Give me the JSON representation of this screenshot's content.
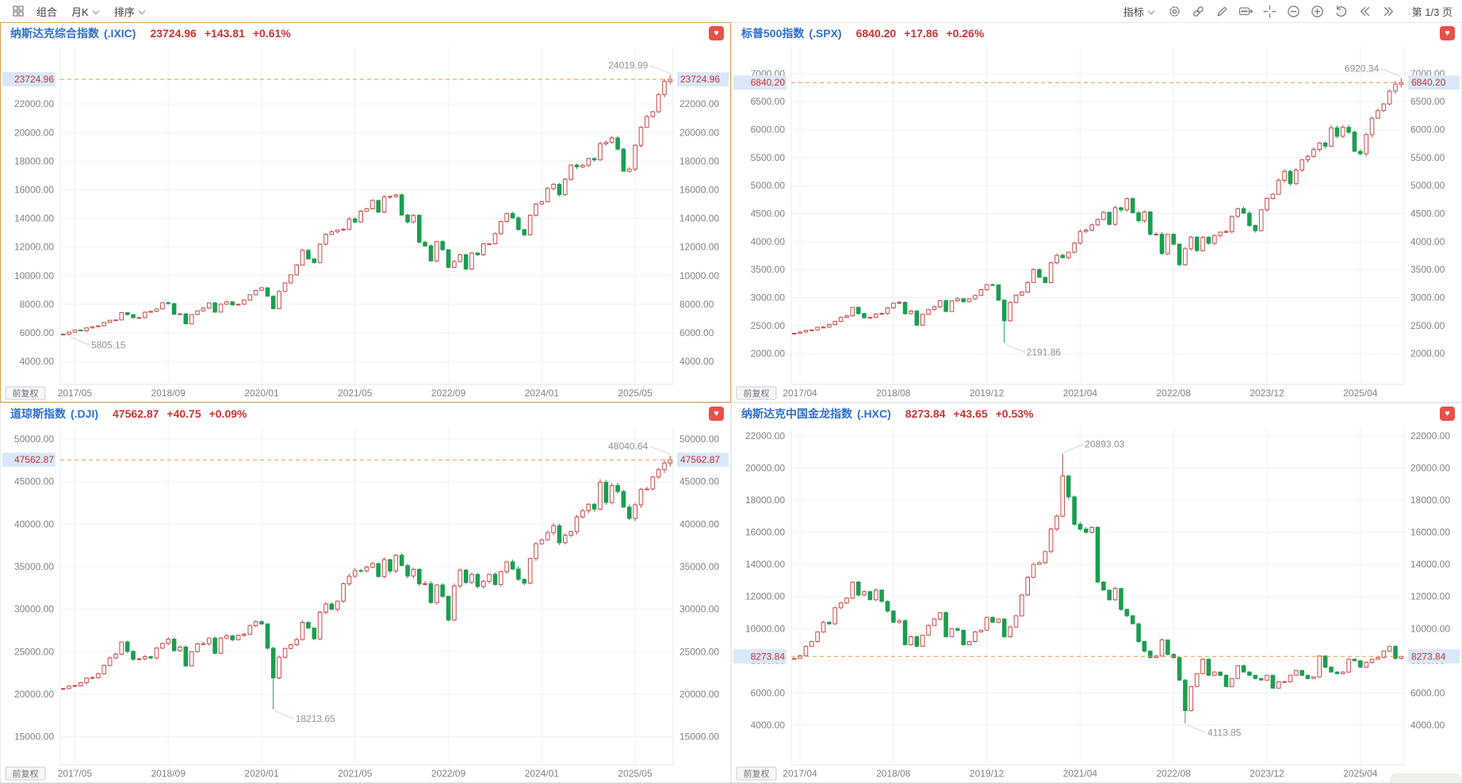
{
  "toolbar": {
    "left": {
      "layout_icon": "grid-layout-icon",
      "portfolio": "组合",
      "period": "月K",
      "sort": "排序"
    },
    "right": {
      "indicator": "指标",
      "page": "第 1/3 页",
      "icon_names": [
        "settings-icon",
        "link-icon",
        "draw-icon",
        "annotation-icon",
        "crosshair-icon",
        "zoom-out-icon",
        "zoom-in-icon",
        "undo-icon",
        "prev-page-icon",
        "next-page-icon"
      ]
    }
  },
  "colors": {
    "up": "#cb4a47",
    "down": "#1b9e51",
    "index_name_blue": "#2e6fce",
    "price_red": "#cc3333",
    "current_line": "#e8973f",
    "current_label_bg": "#d9e8f8",
    "active_panel_border": "#e0a053",
    "grid_line": "#eef0f3",
    "axis_text": "#7d838c",
    "annotation_text": "#8e939b"
  },
  "chart_data": [
    {
      "type": "candlestick",
      "interval": "monthly",
      "active": true,
      "name": "纳斯达克综合指数",
      "code": "(.IXIC)",
      "price": "23724.96",
      "change": "+143.81",
      "pct": "+0.61%",
      "current": 23724.96,
      "adjust_label": "前复权",
      "ylim": [
        2400,
        26000
      ],
      "yticks": [
        4000,
        6000,
        8000,
        10000,
        12000,
        14000,
        16000,
        18000,
        20000,
        22000
      ],
      "xticks": [
        {
          "i": 2,
          "label": "2017/05"
        },
        {
          "i": 18,
          "label": "2018/09"
        },
        {
          "i": 34,
          "label": "2020/01"
        },
        {
          "i": 50,
          "label": "2021/05"
        },
        {
          "i": 66,
          "label": "2022/09"
        },
        {
          "i": 82,
          "label": "2024/01"
        },
        {
          "i": 98,
          "label": "2025/05"
        }
      ],
      "annotations": [
        {
          "i": 104,
          "type": "high",
          "value": 24019.99,
          "label": "24019.99",
          "side": "left"
        },
        {
          "i": 1,
          "type": "low",
          "value": 5805.15,
          "label": "5805.15",
          "side": "right"
        }
      ],
      "closes": [
        5912,
        6048,
        6199,
        6140,
        6348,
        6429,
        6496,
        6728,
        6874,
        6903,
        7411,
        7273,
        7063,
        7066,
        7442,
        7510,
        7672,
        8110,
        8046,
        7306,
        7331,
        6635,
        7282,
        7533,
        7729,
        8095,
        7453,
        8006,
        8175,
        7963,
        7999,
        8292,
        8665,
        8973,
        9151,
        8567,
        7700,
        8890,
        9490,
        10059,
        10745,
        11775,
        11168,
        10912,
        12199,
        12888,
        13071,
        13192,
        13247,
        13963,
        13749,
        14504,
        14673,
        15259,
        14449,
        15498,
        15538,
        15645,
        14240,
        13751,
        14221,
        12335,
        12081,
        11029,
        12391,
        11816,
        10576,
        10988,
        11468,
        10466,
        11585,
        11456,
        12222,
        12227,
        12935,
        13788,
        14346,
        14035,
        13219,
        12851,
        14226,
        15011,
        15164,
        16092,
        16379,
        15658,
        16735,
        17733,
        17599,
        17713,
        18189,
        18095,
        19218,
        19311,
        19627,
        18847,
        17299,
        17446,
        19114,
        20370,
        21122,
        21456,
        22660,
        23581,
        23724.96
      ]
    },
    {
      "type": "candlestick",
      "interval": "monthly",
      "active": false,
      "name": "标普500指数",
      "code": "(.SPX)",
      "price": "6840.20",
      "change": "+17.86",
      "pct": "+0.26%",
      "current": 6840.2,
      "adjust_label": "前复权",
      "ylim": [
        1450,
        7480
      ],
      "yticks": [
        2000,
        2500,
        3000,
        3500,
        4000,
        4500,
        5000,
        5500,
        6000,
        6500,
        7000
      ],
      "xticks": [
        {
          "i": 1,
          "label": "2017/04"
        },
        {
          "i": 17,
          "label": "2018/08"
        },
        {
          "i": 33,
          "label": "2019/12"
        },
        {
          "i": 49,
          "label": "2021/04"
        },
        {
          "i": 65,
          "label": "2022/08"
        },
        {
          "i": 81,
          "label": "2023/12"
        },
        {
          "i": 97,
          "label": "2025/04"
        }
      ],
      "annotations": [
        {
          "i": 104,
          "type": "high",
          "value": 6920.34,
          "label": "6920.34",
          "side": "left"
        },
        {
          "i": 36,
          "type": "low",
          "value": 2191.86,
          "label": "2191.86",
          "side": "right"
        }
      ],
      "closes": [
        2363,
        2384,
        2412,
        2423,
        2470,
        2472,
        2519,
        2575,
        2648,
        2674,
        2824,
        2714,
        2641,
        2648,
        2705,
        2718,
        2816,
        2902,
        2914,
        2712,
        2760,
        2507,
        2704,
        2784,
        2834,
        2946,
        2752,
        2942,
        2980,
        2926,
        2977,
        3038,
        3141,
        3231,
        3226,
        2954,
        2585,
        2912,
        3044,
        3100,
        3271,
        3500,
        3363,
        3270,
        3622,
        3756,
        3714,
        3811,
        3973,
        4181,
        4204,
        4298,
        4395,
        4523,
        4308,
        4605,
        4567,
        4766,
        4516,
        4374,
        4530,
        4132,
        4132,
        3785,
        4130,
        3955,
        3586,
        3872,
        4080,
        3840,
        4077,
        3970,
        4109,
        4169,
        4180,
        4450,
        4589,
        4508,
        4288,
        4194,
        4568,
        4770,
        4846,
        5096,
        5254,
        5036,
        5278,
        5460,
        5522,
        5648,
        5762,
        5705,
        6032,
        5882,
        6041,
        5955,
        5612,
        5569,
        5912,
        6205,
        6339,
        6460,
        6688,
        6812,
        6840.2
      ]
    },
    {
      "type": "candlestick",
      "interval": "monthly",
      "active": false,
      "name": "道琼斯指数",
      "code": "(.DJI)",
      "price": "47562.87",
      "change": "+40.75",
      "pct": "+0.09%",
      "current": 47562.87,
      "adjust_label": "前复权",
      "ylim": [
        11700,
        51400
      ],
      "yticks": [
        15000,
        20000,
        25000,
        30000,
        35000,
        40000,
        45000,
        50000
      ],
      "xticks": [
        {
          "i": 2,
          "label": "2017/05"
        },
        {
          "i": 18,
          "label": "2018/09"
        },
        {
          "i": 34,
          "label": "2020/01"
        },
        {
          "i": 50,
          "label": "2021/05"
        },
        {
          "i": 66,
          "label": "2022/09"
        },
        {
          "i": 82,
          "label": "2024/01"
        },
        {
          "i": 98,
          "label": "2025/05"
        }
      ],
      "annotations": [
        {
          "i": 104,
          "type": "high",
          "value": 48040.64,
          "label": "48040.64",
          "side": "left"
        },
        {
          "i": 36,
          "type": "low",
          "value": 18213.65,
          "label": "18213.65",
          "side": "right"
        }
      ],
      "closes": [
        20663,
        20941,
        21009,
        21350,
        21891,
        21948,
        22405,
        23377,
        24272,
        24719,
        26149,
        25029,
        24103,
        24163,
        24416,
        24271,
        25415,
        25965,
        26458,
        25116,
        25538,
        23327,
        25000,
        25916,
        25929,
        26593,
        24815,
        26600,
        26864,
        26403,
        26917,
        27046,
        28051,
        28538,
        28256,
        25409,
        21917,
        24346,
        25383,
        25813,
        26428,
        28430,
        27782,
        26502,
        29639,
        30606,
        29983,
        30932,
        32981,
        33875,
        34529,
        34503,
        34935,
        35361,
        33844,
        35820,
        34484,
        36338,
        35132,
        33893,
        34678,
        32977,
        32990,
        30775,
        32845,
        31510,
        28726,
        32733,
        34590,
        33147,
        34086,
        32657,
        33274,
        34098,
        32908,
        34408,
        35560,
        34722,
        33508,
        33053,
        35951,
        37690,
        38150,
        38996,
        39807,
        37816,
        38686,
        39119,
        40843,
        41563,
        42330,
        41763,
        44911,
        42544,
        44545,
        43841,
        42002,
        40669,
        42270,
        44095,
        44130,
        45545,
        46398,
        47200,
        47562.87
      ]
    },
    {
      "type": "candlestick",
      "interval": "monthly",
      "active": false,
      "name": "纳斯达克中国金龙指数",
      "code": "(.HXC)",
      "price": "8273.84",
      "change": "+43.65",
      "pct": "+0.53%",
      "current": 8273.84,
      "adjust_label": "前复权",
      "ylim": [
        1530,
        22540
      ],
      "yticks": [
        4000,
        6000,
        8000,
        10000,
        12000,
        14000,
        16000,
        18000,
        20000,
        22000
      ],
      "xticks": [
        {
          "i": 1,
          "label": "2017/04"
        },
        {
          "i": 17,
          "label": "2018/08"
        },
        {
          "i": 33,
          "label": "2019/12"
        },
        {
          "i": 49,
          "label": "2021/04"
        },
        {
          "i": 65,
          "label": "2022/08"
        },
        {
          "i": 81,
          "label": "2023/12"
        },
        {
          "i": 97,
          "label": "2025/04"
        }
      ],
      "annotations": [
        {
          "i": 46,
          "type": "high",
          "value": 20893.03,
          "label": "20893.03",
          "side": "right"
        },
        {
          "i": 67,
          "type": "low",
          "value": 4113.85,
          "label": "4113.85",
          "side": "right"
        }
      ],
      "closes": [
        8150,
        8320,
        8900,
        9200,
        9800,
        10400,
        10300,
        11300,
        11600,
        11900,
        12900,
        12100,
        12300,
        11800,
        12400,
        11700,
        11100,
        10400,
        10500,
        9000,
        9500,
        8900,
        9600,
        10200,
        10600,
        11000,
        9500,
        10000,
        9900,
        9000,
        9200,
        9800,
        9900,
        10700,
        10400,
        10600,
        9500,
        10100,
        10800,
        12100,
        13200,
        14000,
        14100,
        14800,
        16200,
        17000,
        19500,
        18200,
        16500,
        16200,
        16000,
        16300,
        12900,
        12400,
        11800,
        12500,
        11200,
        10800,
        10300,
        9200,
        8600,
        8200,
        8300,
        9300,
        8400,
        8200,
        6800,
        4900,
        6400,
        7200,
        8100,
        7100,
        7300,
        7100,
        6400,
        6900,
        7700,
        7300,
        7100,
        6900,
        6800,
        7100,
        6300,
        6700,
        6700,
        7100,
        7400,
        7100,
        6900,
        7000,
        8300,
        7600,
        7300,
        7200,
        7300,
        8100,
        8000,
        7600,
        7900,
        8100,
        8200,
        8600,
        8900,
        8150,
        8273.84
      ]
    }
  ]
}
